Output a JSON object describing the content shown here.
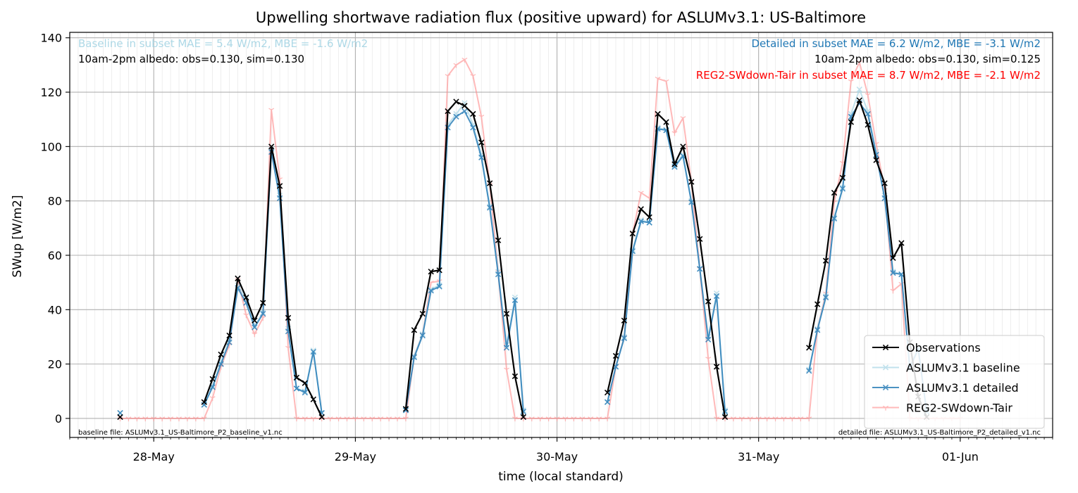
{
  "chart_data": {
    "type": "line",
    "title": "Upwelling shortwave radiation flux (positive upward) for ASLUMv3.1: US-Baltimore",
    "xlabel": "time (local standard)",
    "ylabel": "SWup [W/m2]",
    "x_unit": "hours since 28-May 00:00 (local standard)",
    "xlim": [
      -10,
      107
    ],
    "ylim": [
      -7,
      142
    ],
    "x_ticks": [
      {
        "label": "28-May",
        "x": 0
      },
      {
        "label": "29-May",
        "x": 24
      },
      {
        "label": "30-May",
        "x": 48
      },
      {
        "label": "31-May",
        "x": 72
      },
      {
        "label": "01-Jun",
        "x": 96
      }
    ],
    "y_ticks": [
      0,
      20,
      40,
      60,
      80,
      100,
      120,
      140
    ],
    "grid": true,
    "legend_position": "lower-right",
    "annotations": {
      "baseline_metrics": "Baseline in subset MAE = 5.4 W/m2, MBE = -1.6 W/m2",
      "baseline_albedo": "10am-2pm albedo: obs=0.130, sim=0.130",
      "detailed_metrics": "Detailed in subset MAE = 6.2 W/m2, MBE = -3.1 W/m2",
      "detailed_albedo": "10am-2pm albedo: obs=0.130, sim=0.125",
      "reg2_metrics": "REG2-SWdown-Tair in subset MAE = 8.7 W/m2, MBE = -2.1 W/m2",
      "baseline_file": "baseline file: ASLUMv3.1_US-Baltimore_P2_baseline_v1.nc",
      "detailed_file": "detailed file: ASLUMv3.1_US-Baltimore_P2_detailed_v1.nc"
    },
    "series": [
      {
        "name": "Observations",
        "color": "#000000",
        "alpha": 1,
        "marker": "x",
        "points": [
          [
            -4,
            0.5
          ],
          [
            6,
            6
          ],
          [
            7,
            14.5
          ],
          [
            8,
            23.5
          ],
          [
            9,
            30.5
          ],
          [
            10,
            51.5
          ],
          [
            11,
            44.5
          ],
          [
            12,
            36
          ],
          [
            13,
            42.5
          ],
          [
            14,
            100
          ],
          [
            15,
            85.5
          ],
          [
            16,
            37
          ],
          [
            17,
            15
          ],
          [
            18,
            13
          ],
          [
            19,
            7
          ],
          [
            20,
            0.5
          ],
          [
            30,
            3.5
          ],
          [
            31,
            32.5
          ],
          [
            32,
            38.5
          ],
          [
            33,
            54
          ],
          [
            34,
            54.5
          ],
          [
            35,
            113
          ],
          [
            36,
            116.5
          ],
          [
            37,
            115
          ],
          [
            38,
            112
          ],
          [
            39,
            101.5
          ],
          [
            40,
            86.5
          ],
          [
            41,
            65.5
          ],
          [
            42,
            38.5
          ],
          [
            43,
            15.5
          ],
          [
            44,
            0.5
          ],
          [
            54,
            9.5
          ],
          [
            55,
            23
          ],
          [
            56,
            36
          ],
          [
            57,
            68
          ],
          [
            58,
            77
          ],
          [
            59,
            74
          ],
          [
            60,
            112
          ],
          [
            61,
            109
          ],
          [
            62,
            93.5
          ],
          [
            63,
            100
          ],
          [
            64,
            87
          ],
          [
            65,
            66
          ],
          [
            66,
            43
          ],
          [
            67,
            19
          ],
          [
            68,
            0.5
          ],
          [
            78,
            26
          ],
          [
            79,
            42
          ],
          [
            80,
            58
          ],
          [
            81,
            83
          ],
          [
            82,
            88.5
          ],
          [
            83,
            109
          ],
          [
            84,
            117
          ],
          [
            85,
            108
          ],
          [
            86,
            95
          ],
          [
            87,
            86.5
          ],
          [
            88,
            59
          ],
          [
            89,
            64.5
          ],
          [
            90,
            28
          ],
          [
            91,
            8
          ],
          [
            92,
            0.5
          ]
        ]
      },
      {
        "name": "ASLUMv3.1 baseline",
        "color": "#add8e6",
        "alpha": 0.75,
        "marker": "x",
        "points": [
          [
            -4,
            2
          ],
          [
            6,
            5
          ],
          [
            7,
            12
          ],
          [
            8,
            21
          ],
          [
            9,
            29
          ],
          [
            10,
            49
          ],
          [
            11,
            44
          ],
          [
            12,
            34
          ],
          [
            13,
            39
          ],
          [
            14,
            99
          ],
          [
            15,
            82
          ],
          [
            16,
            33
          ],
          [
            17,
            11
          ],
          [
            18,
            10
          ],
          [
            19,
            25
          ],
          [
            20,
            2
          ],
          [
            30,
            3
          ],
          [
            31,
            23
          ],
          [
            32,
            31
          ],
          [
            33,
            47.5
          ],
          [
            34,
            49
          ],
          [
            35,
            108
          ],
          [
            36,
            112
          ],
          [
            37,
            116
          ],
          [
            38,
            108
          ],
          [
            39,
            97
          ],
          [
            40,
            78
          ],
          [
            41,
            54
          ],
          [
            42,
            27
          ],
          [
            43,
            44.5
          ],
          [
            44,
            3
          ],
          [
            54,
            6
          ],
          [
            55,
            19
          ],
          [
            56,
            30
          ],
          [
            57,
            62
          ],
          [
            58,
            73
          ],
          [
            59,
            72
          ],
          [
            60,
            107
          ],
          [
            61,
            106
          ],
          [
            62,
            93
          ],
          [
            63,
            97
          ],
          [
            64,
            80
          ],
          [
            65,
            55
          ],
          [
            66,
            30
          ],
          [
            67,
            46
          ],
          [
            68,
            3
          ],
          [
            78,
            18
          ],
          [
            79,
            33
          ],
          [
            80,
            45
          ],
          [
            81,
            74
          ],
          [
            82,
            85
          ],
          [
            83,
            112
          ],
          [
            84,
            121
          ],
          [
            85,
            113
          ],
          [
            86,
            98
          ],
          [
            87,
            82
          ],
          [
            88,
            54
          ],
          [
            89,
            53
          ],
          [
            90,
            19
          ],
          [
            91,
            26
          ],
          [
            92,
            3
          ]
        ]
      },
      {
        "name": "ASLUMv3.1 detailed",
        "color": "#1f77b4",
        "alpha": 0.8,
        "marker": "x",
        "points": [
          [
            -4,
            2
          ],
          [
            6,
            5
          ],
          [
            7,
            11.5
          ],
          [
            8,
            20
          ],
          [
            9,
            28
          ],
          [
            10,
            48
          ],
          [
            11,
            42.5
          ],
          [
            12,
            33.5
          ],
          [
            13,
            38.5
          ],
          [
            14,
            98
          ],
          [
            15,
            81
          ],
          [
            16,
            32
          ],
          [
            17,
            11
          ],
          [
            18,
            9.5
          ],
          [
            19,
            24.5
          ],
          [
            20,
            2
          ],
          [
            30,
            3
          ],
          [
            31,
            22.5
          ],
          [
            32,
            30.5
          ],
          [
            33,
            47
          ],
          [
            34,
            48.5
          ],
          [
            35,
            107
          ],
          [
            36,
            111
          ],
          [
            37,
            113
          ],
          [
            38,
            107
          ],
          [
            39,
            96
          ],
          [
            40,
            77.5
          ],
          [
            41,
            53
          ],
          [
            42,
            26
          ],
          [
            43,
            43.5
          ],
          [
            44,
            2.5
          ],
          [
            54,
            6
          ],
          [
            55,
            19
          ],
          [
            56,
            29.5
          ],
          [
            57,
            61.5
          ],
          [
            58,
            72.5
          ],
          [
            59,
            72
          ],
          [
            60,
            106.5
          ],
          [
            61,
            106
          ],
          [
            62,
            92.5
          ],
          [
            63,
            96.5
          ],
          [
            64,
            79.5
          ],
          [
            65,
            55
          ],
          [
            66,
            29
          ],
          [
            67,
            45
          ],
          [
            68,
            2.5
          ],
          [
            78,
            17.5
          ],
          [
            79,
            32.5
          ],
          [
            80,
            44.5
          ],
          [
            81,
            73.5
          ],
          [
            82,
            84.5
          ],
          [
            83,
            111
          ],
          [
            84,
            116
          ],
          [
            85,
            112
          ],
          [
            86,
            97
          ],
          [
            87,
            81
          ],
          [
            88,
            53.5
          ],
          [
            89,
            53
          ],
          [
            90,
            18.5
          ],
          [
            91,
            25.5
          ],
          [
            92,
            2.5
          ]
        ]
      },
      {
        "name": "REG2-SWdown-Tair",
        "color": "#ff8c8c",
        "alpha": 0.6,
        "marker": "1",
        "points": [
          [
            -4,
            0
          ],
          [
            -3,
            0
          ],
          [
            -2,
            0
          ],
          [
            -1,
            0
          ],
          [
            0,
            0
          ],
          [
            1,
            0
          ],
          [
            2,
            0
          ],
          [
            3,
            0
          ],
          [
            4,
            0
          ],
          [
            5,
            0
          ],
          [
            6,
            0
          ],
          [
            7,
            7.5
          ],
          [
            8,
            19
          ],
          [
            9,
            27
          ],
          [
            10,
            51
          ],
          [
            11,
            38
          ],
          [
            12,
            31
          ],
          [
            13,
            37
          ],
          [
            14,
            113.5
          ],
          [
            15,
            88
          ],
          [
            16,
            26
          ],
          [
            17,
            0
          ],
          [
            18,
            0
          ],
          [
            19,
            0
          ],
          [
            20,
            0
          ],
          [
            21,
            0
          ],
          [
            22,
            0
          ],
          [
            23,
            0
          ],
          [
            24,
            0
          ],
          [
            25,
            0
          ],
          [
            26,
            0
          ],
          [
            27,
            0
          ],
          [
            28,
            0
          ],
          [
            29,
            0
          ],
          [
            30,
            0
          ],
          [
            31,
            23
          ],
          [
            32,
            31
          ],
          [
            33,
            50
          ],
          [
            34,
            50.5
          ],
          [
            35,
            126
          ],
          [
            36,
            130
          ],
          [
            37,
            132
          ],
          [
            38,
            126
          ],
          [
            39,
            111
          ],
          [
            40,
            86
          ],
          [
            41,
            54
          ],
          [
            42,
            18
          ],
          [
            43,
            0
          ],
          [
            44,
            0
          ],
          [
            45,
            0
          ],
          [
            46,
            0
          ],
          [
            47,
            0
          ],
          [
            48,
            0
          ],
          [
            49,
            0
          ],
          [
            50,
            0
          ],
          [
            51,
            0
          ],
          [
            52,
            0
          ],
          [
            53,
            0
          ],
          [
            54,
            0
          ],
          [
            55,
            19
          ],
          [
            56,
            30
          ],
          [
            57,
            68
          ],
          [
            58,
            83
          ],
          [
            59,
            81
          ],
          [
            60,
            125
          ],
          [
            61,
            124
          ],
          [
            62,
            105
          ],
          [
            63,
            110.5
          ],
          [
            64,
            87
          ],
          [
            65,
            55
          ],
          [
            66,
            22
          ],
          [
            67,
            0
          ],
          [
            68,
            0
          ],
          [
            69,
            0
          ],
          [
            70,
            0
          ],
          [
            71,
            0
          ],
          [
            72,
            0
          ],
          [
            73,
            0
          ],
          [
            74,
            0
          ],
          [
            75,
            0
          ],
          [
            76,
            0
          ],
          [
            77,
            0
          ],
          [
            78,
            0
          ],
          [
            79,
            33
          ],
          [
            80,
            46
          ],
          [
            81,
            79.5
          ],
          [
            82,
            94
          ],
          [
            83,
            124
          ],
          [
            84,
            131
          ],
          [
            85,
            119
          ],
          [
            86,
            101
          ],
          [
            87,
            84
          ],
          [
            88,
            47
          ],
          [
            89,
            49.5
          ],
          [
            90,
            0
          ],
          [
            91,
            0
          ],
          [
            92,
            0
          ],
          [
            93,
            0
          ],
          [
            94,
            0
          ],
          [
            95,
            0
          ],
          [
            96,
            0
          ]
        ]
      }
    ]
  }
}
